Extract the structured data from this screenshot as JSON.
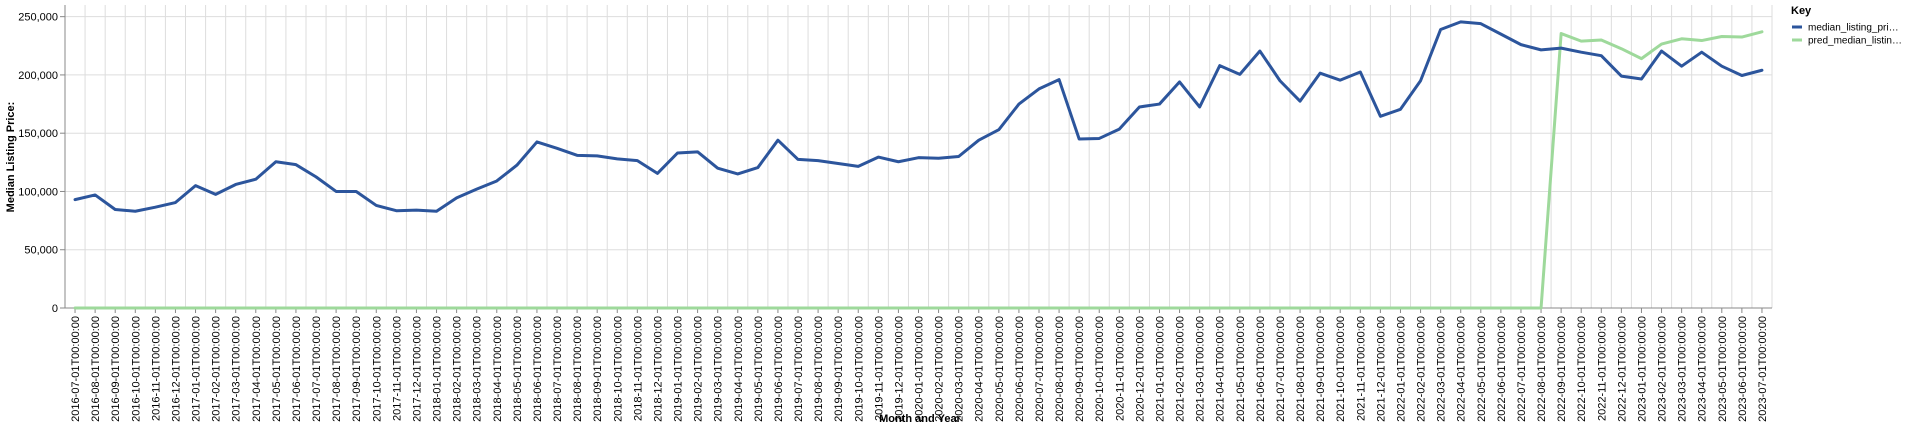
{
  "chart_data": {
    "type": "line",
    "xlabel": "Month and Year",
    "ylabel": "Median Listing Price:",
    "ylim": [
      0,
      260000
    ],
    "yticks": [
      0,
      50000,
      100000,
      150000,
      200000,
      250000
    ],
    "ytick_labels": [
      "0",
      "50,000",
      "100,000",
      "150,000",
      "200,000",
      "250,000"
    ],
    "grid": true,
    "legend": {
      "title": "Key",
      "position": "right",
      "entries": [
        "median_listing_pri…",
        "pred_median_listin…"
      ]
    },
    "colors": {
      "median": "#2c559c",
      "pred": "#9ed99b",
      "grid": "#dddddd",
      "axis": "#888888"
    },
    "x": [
      "2016-07-01T00:00:00",
      "2016-08-01T00:00:00",
      "2016-09-01T00:00:00",
      "2016-10-01T00:00:00",
      "2016-11-01T00:00:00",
      "2016-12-01T00:00:00",
      "2017-01-01T00:00:00",
      "2017-02-01T00:00:00",
      "2017-03-01T00:00:00",
      "2017-04-01T00:00:00",
      "2017-05-01T00:00:00",
      "2017-06-01T00:00:00",
      "2017-07-01T00:00:00",
      "2017-08-01T00:00:00",
      "2017-09-01T00:00:00",
      "2017-10-01T00:00:00",
      "2017-11-01T00:00:00",
      "2017-12-01T00:00:00",
      "2018-01-01T00:00:00",
      "2018-02-01T00:00:00",
      "2018-03-01T00:00:00",
      "2018-04-01T00:00:00",
      "2018-05-01T00:00:00",
      "2018-06-01T00:00:00",
      "2018-07-01T00:00:00",
      "2018-08-01T00:00:00",
      "2018-09-01T00:00:00",
      "2018-10-01T00:00:00",
      "2018-11-01T00:00:00",
      "2018-12-01T00:00:00",
      "2019-01-01T00:00:00",
      "2019-02-01T00:00:00",
      "2019-03-01T00:00:00",
      "2019-04-01T00:00:00",
      "2019-05-01T00:00:00",
      "2019-06-01T00:00:00",
      "2019-07-01T00:00:00",
      "2019-08-01T00:00:00",
      "2019-09-01T00:00:00",
      "2019-10-01T00:00:00",
      "2019-11-01T00:00:00",
      "2019-12-01T00:00:00",
      "2020-01-01T00:00:00",
      "2020-02-01T00:00:00",
      "2020-03-01T00:00:00",
      "2020-04-01T00:00:00",
      "2020-05-01T00:00:00",
      "2020-06-01T00:00:00",
      "2020-07-01T00:00:00",
      "2020-08-01T00:00:00",
      "2020-09-01T00:00:00",
      "2020-10-01T00:00:00",
      "2020-11-01T00:00:00",
      "2020-12-01T00:00:00",
      "2021-01-01T00:00:00",
      "2021-02-01T00:00:00",
      "2021-03-01T00:00:00",
      "2021-04-01T00:00:00",
      "2021-05-01T00:00:00",
      "2021-06-01T00:00:00",
      "2021-07-01T00:00:00",
      "2021-08-01T00:00:00",
      "2021-09-01T00:00:00",
      "2021-10-01T00:00:00",
      "2021-11-01T00:00:00",
      "2021-12-01T00:00:00",
      "2022-01-01T00:00:00",
      "2022-02-01T00:00:00",
      "2022-03-01T00:00:00",
      "2022-04-01T00:00:00",
      "2022-05-01T00:00:00",
      "2022-06-01T00:00:00",
      "2022-07-01T00:00:00",
      "2022-08-01T00:00:00",
      "2022-09-01T00:00:00",
      "2022-10-01T00:00:00",
      "2022-11-01T00:00:00",
      "2022-12-01T00:00:00",
      "2023-01-01T00:00:00",
      "2023-02-01T00:00:00",
      "2023-03-01T00:00:00",
      "2023-04-01T00:00:00",
      "2023-05-01T00:00:00",
      "2023-06-01T00:00:00",
      "2023-07-01T00:00:00"
    ],
    "series": [
      {
        "name": "median_listing_pri…",
        "values": [
          93000,
          97000,
          84500,
          83000,
          86500,
          90500,
          105000,
          97500,
          106000,
          110500,
          125500,
          123000,
          112500,
          100000,
          100000,
          88000,
          83500,
          84000,
          83000,
          94500,
          102000,
          109000,
          122500,
          142500,
          137000,
          131000,
          130500,
          128000,
          126500,
          115500,
          133000,
          134000,
          120000,
          115000,
          120500,
          144000,
          127500,
          126500,
          124000,
          121500,
          129500,
          125500,
          129000,
          128500,
          130000,
          144000,
          153000,
          175000,
          188000,
          196000,
          145000,
          145500,
          153500,
          172500,
          175000,
          194000,
          172500,
          208000,
          200500,
          220500,
          195000,
          177500,
          201500,
          195500,
          202500,
          164500,
          170500,
          195000,
          239000,
          245500,
          244000,
          235000,
          226000,
          221500,
          223000,
          219500,
          216500,
          199000,
          196500,
          220500,
          207500,
          219500,
          207500,
          199500,
          204000
        ]
      },
      {
        "name": "pred_median_listin…",
        "values": [
          0,
          0,
          0,
          0,
          0,
          0,
          0,
          0,
          0,
          0,
          0,
          0,
          0,
          0,
          0,
          0,
          0,
          0,
          0,
          0,
          0,
          0,
          0,
          0,
          0,
          0,
          0,
          0,
          0,
          0,
          0,
          0,
          0,
          0,
          0,
          0,
          0,
          0,
          0,
          0,
          0,
          0,
          0,
          0,
          0,
          0,
          0,
          0,
          0,
          0,
          0,
          0,
          0,
          0,
          0,
          0,
          0,
          0,
          0,
          0,
          0,
          0,
          0,
          0,
          0,
          0,
          0,
          0,
          0,
          0,
          0,
          0,
          0,
          0,
          235500,
          229000,
          230000,
          222500,
          214000,
          226500,
          231000,
          229500,
          233000,
          232500,
          237000
        ]
      }
    ]
  }
}
